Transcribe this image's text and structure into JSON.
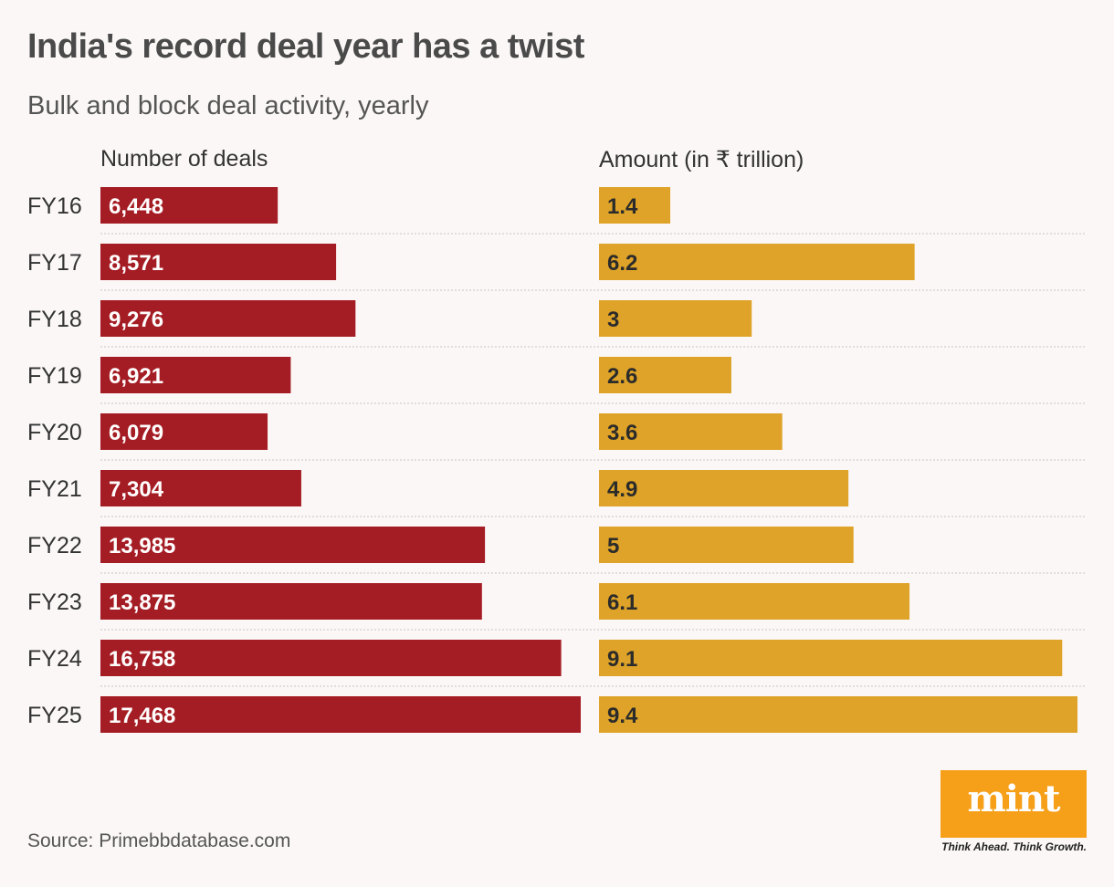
{
  "title": "India's record deal year has a twist",
  "subtitle": "Bulk and block deal activity, yearly",
  "source": "Source: Primebbdatabase.com",
  "logo": {
    "word": "mint",
    "tagline": "Think Ahead. Think Growth."
  },
  "colors": {
    "deals_bar": "#a51d24",
    "amount_bar": "#dea328",
    "background": "#fcf7f7",
    "logo_bg": "#f6a01a"
  },
  "chart_data": {
    "type": "bar",
    "orientation": "horizontal",
    "categories": [
      "FY16",
      "FY17",
      "FY18",
      "FY19",
      "FY20",
      "FY21",
      "FY22",
      "FY23",
      "FY24",
      "FY25"
    ],
    "series": [
      {
        "name": "Number of deals",
        "values": [
          6448,
          8571,
          9276,
          6921,
          6079,
          7304,
          13985,
          13875,
          16758,
          17468
        ],
        "labels": [
          "6,448",
          "8,571",
          "9,276",
          "6,921",
          "6,079",
          "7,304",
          "13,985",
          "13,875",
          "16,758",
          "17,468"
        ]
      },
      {
        "name": "Amount (in ₹ trillion)",
        "values": [
          1.4,
          6.2,
          3,
          2.6,
          3.6,
          4.9,
          5,
          6.1,
          9.1,
          9.4
        ],
        "labels": [
          "1.4",
          "6.2",
          "3",
          "2.6",
          "3.6",
          "4.9",
          "5",
          "6.1",
          "9.1",
          "9.4"
        ]
      }
    ],
    "title": "India's record deal year has a twist",
    "subtitle": "Bulk and block deal activity, yearly",
    "grid": false,
    "legend": "none"
  }
}
